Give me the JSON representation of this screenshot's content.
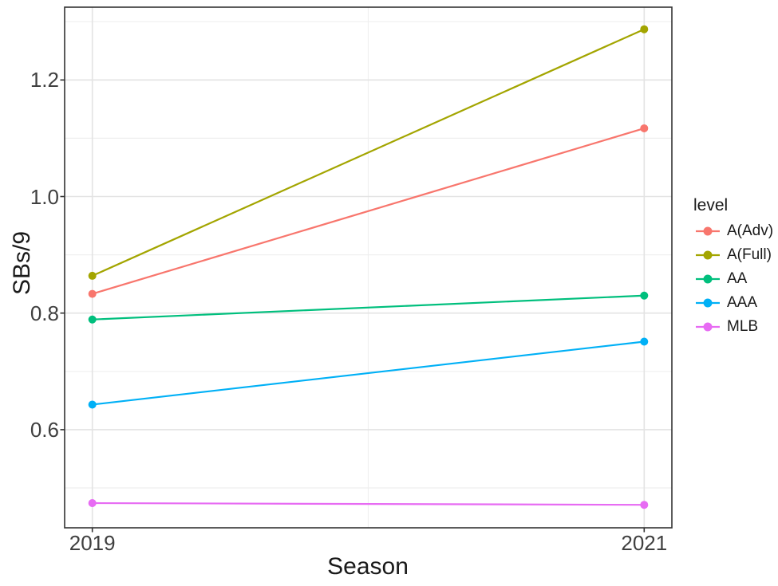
{
  "chart_data": {
    "type": "line",
    "title": "",
    "xlabel": "Season",
    "ylabel": "SBs/9",
    "legend_title": "level",
    "legend_position": "right",
    "grid": true,
    "panel_style": "white background, light gray major/minor gridlines, dark gray panel border (ggplot theme_bw)",
    "x": [
      2019,
      2021
    ],
    "x_tick_labels": [
      "2019",
      "2021"
    ],
    "x_minor_gridlines": [
      2020
    ],
    "xlim": [
      2018.9,
      2021.1
    ],
    "y_ticks": [
      0.6,
      0.8,
      1.0,
      1.2
    ],
    "y_tick_labels": [
      "0.6",
      "0.8",
      "1.0",
      "1.2"
    ],
    "y_minor_gridlines": [
      0.5,
      0.7,
      0.9,
      1.1,
      1.3
    ],
    "ylim": [
      0.43,
      1.33
    ],
    "series": [
      {
        "name": "A(Adv)",
        "color": "#F8766D",
        "values": [
          0.833,
          1.117
        ]
      },
      {
        "name": "A(Full)",
        "color": "#A3A500",
        "values": [
          0.864,
          1.287
        ]
      },
      {
        "name": "AA",
        "color": "#00BF7D",
        "values": [
          0.789,
          0.83
        ]
      },
      {
        "name": "AAA",
        "color": "#00B0F6",
        "values": [
          0.643,
          0.751
        ]
      },
      {
        "name": "MLB",
        "color": "#E76BF3",
        "values": [
          0.474,
          0.471
        ]
      }
    ]
  }
}
